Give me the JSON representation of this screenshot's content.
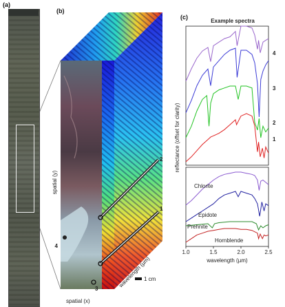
{
  "panels": {
    "a": {
      "label": "(a)"
    },
    "b": {
      "label": "(b)",
      "spatial_y": "spatial (y)",
      "spatial_x": "spatial (x)",
      "wavelength": "wavelength (µm)",
      "scale_bar": "1 cm",
      "markers": [
        "1",
        "2",
        "3",
        "4"
      ]
    },
    "c": {
      "label": "(c)",
      "title": "Example spectra"
    }
  },
  "chart_data": [
    {
      "type": "line",
      "title": "Example spectra",
      "ylabel": "reflectance (offset for clarity)",
      "xlabel": "",
      "xlim": [
        1.0,
        2.5
      ],
      "series": [
        {
          "name": "1",
          "color": "#e02020",
          "x": [
            1.0,
            1.1,
            1.2,
            1.3,
            1.4,
            1.45,
            1.5,
            1.6,
            1.7,
            1.8,
            1.9,
            1.92,
            2.0,
            2.1,
            2.2,
            2.25,
            2.3,
            2.32,
            2.35,
            2.39,
            2.42,
            2.45,
            2.5
          ],
          "y": [
            0.2,
            0.6,
            1.1,
            1.6,
            2.0,
            2.2,
            2.3,
            2.5,
            2.8,
            3.2,
            3.6,
            3.2,
            3.9,
            4.1,
            3.9,
            3.1,
            1.0,
            1.8,
            0.6,
            1.3,
            0.5,
            1.4,
            0.9
          ]
        },
        {
          "name": "2",
          "color": "#22c322",
          "x": [
            1.0,
            1.1,
            1.2,
            1.3,
            1.38,
            1.42,
            1.45,
            1.5,
            1.6,
            1.7,
            1.8,
            1.9,
            1.95,
            2.0,
            2.1,
            2.2,
            2.25,
            2.3,
            2.33,
            2.36,
            2.4,
            2.45,
            2.5
          ],
          "y": [
            0.6,
            1.2,
            2.0,
            2.6,
            2.8,
            1.2,
            2.4,
            2.9,
            3.1,
            3.2,
            3.3,
            3.3,
            2.6,
            3.3,
            3.3,
            3.2,
            1.4,
            1.0,
            1.6,
            0.6,
            1.2,
            0.9,
            1.1
          ]
        },
        {
          "name": "3",
          "color": "#3a3ad6",
          "x": [
            1.0,
            1.1,
            1.2,
            1.3,
            1.4,
            1.45,
            1.5,
            1.6,
            1.7,
            1.8,
            1.9,
            1.93,
            2.0,
            2.1,
            2.2,
            2.25,
            2.3,
            2.33,
            2.36,
            2.4,
            2.45,
            2.5
          ],
          "y": [
            0.8,
            1.4,
            2.1,
            2.6,
            2.9,
            2.1,
            3.0,
            3.3,
            3.6,
            3.8,
            3.9,
            2.5,
            3.8,
            3.8,
            3.6,
            3.2,
            2.2,
            0.6,
            2.4,
            2.8,
            3.1,
            3.3
          ]
        },
        {
          "name": "4",
          "color": "#9966cc",
          "x": [
            1.0,
            1.1,
            1.2,
            1.3,
            1.4,
            1.45,
            1.5,
            1.6,
            1.7,
            1.8,
            1.9,
            1.93,
            2.0,
            2.1,
            2.2,
            2.25,
            2.3,
            2.32,
            2.35,
            2.4,
            2.45,
            2.5
          ],
          "y": [
            0.8,
            1.5,
            2.1,
            2.5,
            2.7,
            1.9,
            2.8,
            3.0,
            3.2,
            3.3,
            3.6,
            2.8,
            3.9,
            3.9,
            3.8,
            3.4,
            2.6,
            3.1,
            2.4,
            3.0,
            3.1,
            3.2
          ]
        }
      ]
    },
    {
      "type": "line",
      "title": "",
      "xlabel": "wavelength (µm)",
      "ylabel": "",
      "xlim": [
        1.0,
        2.5
      ],
      "xticks": [
        "1.0",
        "1.5",
        "2.0",
        "2.5"
      ],
      "series": [
        {
          "name": "Chlorite",
          "color": "#8a5ad0",
          "x": [
            1.0,
            1.1,
            1.2,
            1.3,
            1.4,
            1.5,
            1.6,
            1.7,
            1.8,
            1.9,
            2.0,
            2.1,
            2.2,
            2.25,
            2.3,
            2.33,
            2.36,
            2.4,
            2.45,
            2.5
          ],
          "y": [
            0.2,
            0.6,
            1.1,
            1.6,
            2.0,
            2.4,
            2.7,
            2.9,
            3.0,
            3.1,
            3.1,
            3.0,
            2.9,
            2.8,
            2.4,
            1.5,
            2.3,
            2.4,
            2.2,
            2.0
          ]
        },
        {
          "name": "Epidote",
          "color": "#2020a0",
          "x": [
            1.0,
            1.1,
            1.2,
            1.3,
            1.4,
            1.5,
            1.6,
            1.7,
            1.8,
            1.9,
            1.95,
            2.0,
            2.1,
            2.2,
            2.25,
            2.3,
            2.34,
            2.38,
            2.42,
            2.45,
            2.5
          ],
          "y": [
            1.0,
            1.2,
            1.4,
            1.6,
            1.8,
            2.0,
            2.3,
            2.5,
            2.6,
            2.7,
            2.4,
            2.7,
            2.6,
            2.5,
            2.3,
            2.0,
            1.3,
            2.1,
            1.6,
            2.0,
            1.9
          ]
        },
        {
          "name": "Prehnite",
          "color": "#2a8a2a",
          "x": [
            1.0,
            1.2,
            1.4,
            1.48,
            1.52,
            1.6,
            1.8,
            2.0,
            2.2,
            2.28,
            2.32,
            2.36,
            2.4,
            2.45,
            2.5
          ],
          "y": [
            0.9,
            0.95,
            1.0,
            0.8,
            1.0,
            1.05,
            1.1,
            1.1,
            1.1,
            1.0,
            0.7,
            0.9,
            0.8,
            0.9,
            0.95
          ]
        },
        {
          "name": "Hornblende",
          "color": "#c22020",
          "x": [
            1.0,
            1.1,
            1.2,
            1.3,
            1.4,
            1.5,
            1.6,
            1.7,
            1.8,
            1.9,
            2.0,
            2.1,
            2.2,
            2.3,
            2.32,
            2.35,
            2.39,
            2.42,
            2.45,
            2.5
          ],
          "y": [
            0.1,
            0.3,
            0.5,
            0.6,
            0.7,
            0.75,
            0.8,
            0.85,
            0.85,
            0.85,
            0.8,
            0.8,
            0.75,
            0.6,
            0.3,
            0.55,
            0.3,
            0.5,
            0.45,
            0.5
          ]
        }
      ]
    }
  ]
}
